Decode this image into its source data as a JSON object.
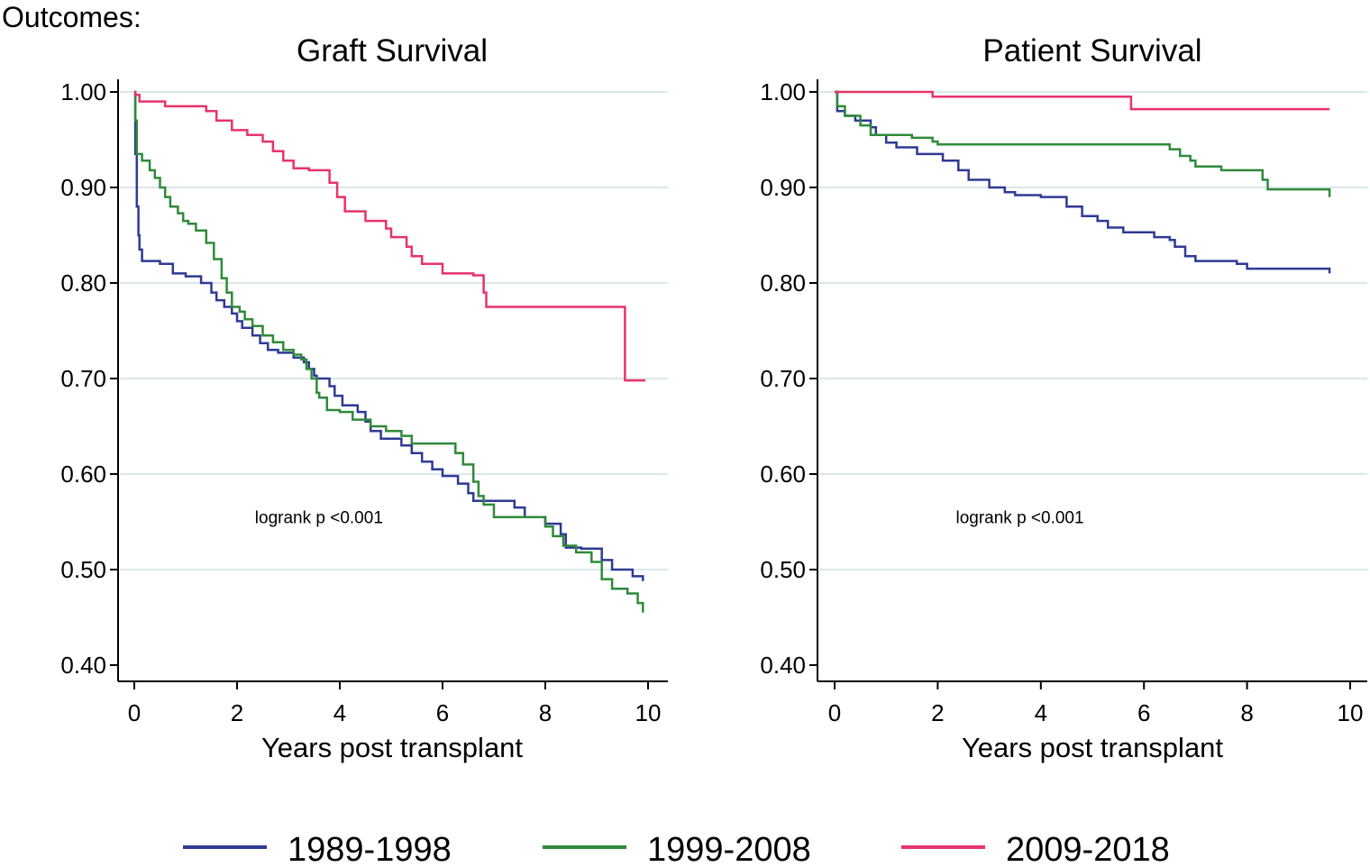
{
  "figure": {
    "heading": "Outcomes:"
  },
  "colors": {
    "series_1989_1998": "#2e3a94",
    "series_1999_2008": "#2f8a3a",
    "series_2009_2018": "#e8336b",
    "gridline": "#dbe8ea",
    "axis": "#000000"
  },
  "legend": [
    {
      "label": "1989-1998",
      "color": "#2e3a94"
    },
    {
      "label": "1999-2008",
      "color": "#2f8a3a"
    },
    {
      "label": "2009-2018",
      "color": "#e8336b"
    }
  ],
  "chart_data": [
    {
      "type": "line",
      "step": true,
      "title": "Graft Survival",
      "xlabel": "Years post transplant",
      "ylabel": "",
      "xlim": [
        0,
        10
      ],
      "ylim": [
        0.4,
        1.0
      ],
      "xticks": [
        0,
        2,
        4,
        6,
        8,
        10
      ],
      "yticks": [
        0.4,
        0.5,
        0.6,
        0.7,
        0.8,
        0.9,
        1.0
      ],
      "ytick_labels": [
        "0.40",
        "0.50",
        "0.60",
        "0.70",
        "0.80",
        "0.90",
        "1.00"
      ],
      "grid": true,
      "annotation": {
        "text": "logrank p <0.001",
        "x": 3.4,
        "y": 0.555
      },
      "series": [
        {
          "name": "1989-1998",
          "x": [
            0,
            0.02,
            0.05,
            0.08,
            0.1,
            0.15,
            0.3,
            0.5,
            0.75,
            1.0,
            1.3,
            1.5,
            1.6,
            1.75,
            1.9,
            2.0,
            2.1,
            2.3,
            2.45,
            2.6,
            2.8,
            3.1,
            3.3,
            3.4,
            3.5,
            3.55,
            3.6,
            3.8,
            3.9,
            4.05,
            4.35,
            4.5,
            4.6,
            4.8,
            5.0,
            5.2,
            5.4,
            5.6,
            5.8,
            6.0,
            6.3,
            6.5,
            6.6,
            6.75,
            6.85,
            7.0,
            7.4,
            7.6,
            8.0,
            8.3,
            8.4,
            8.7,
            9.0,
            9.1,
            9.3,
            9.7,
            9.9
          ],
          "y": [
            1.0,
            0.935,
            0.88,
            0.85,
            0.835,
            0.823,
            0.823,
            0.82,
            0.81,
            0.807,
            0.8,
            0.79,
            0.782,
            0.775,
            0.768,
            0.76,
            0.753,
            0.745,
            0.737,
            0.73,
            0.727,
            0.722,
            0.717,
            0.71,
            0.703,
            0.7,
            0.7,
            0.692,
            0.682,
            0.672,
            0.665,
            0.655,
            0.645,
            0.637,
            0.637,
            0.63,
            0.622,
            0.613,
            0.605,
            0.598,
            0.59,
            0.58,
            0.572,
            0.572,
            0.572,
            0.572,
            0.565,
            0.555,
            0.548,
            0.537,
            0.523,
            0.522,
            0.522,
            0.51,
            0.5,
            0.493,
            0.488
          ]
        },
        {
          "name": "1999-2008",
          "x": [
            0,
            0.02,
            0.05,
            0.15,
            0.3,
            0.4,
            0.5,
            0.6,
            0.7,
            0.85,
            0.95,
            1.05,
            1.2,
            1.4,
            1.55,
            1.7,
            1.8,
            1.9,
            2.05,
            2.15,
            2.3,
            2.5,
            2.7,
            2.9,
            3.1,
            3.25,
            3.35,
            3.45,
            3.55,
            3.6,
            3.75,
            4.0,
            4.25,
            4.6,
            4.9,
            5.2,
            5.4,
            5.6,
            6.25,
            6.4,
            6.6,
            6.7,
            6.8,
            7.0,
            7.5,
            7.8,
            8.0,
            8.15,
            8.35,
            8.6,
            8.9,
            9.1,
            9.3,
            9.6,
            9.8,
            9.9
          ],
          "y": [
            1.0,
            0.97,
            0.935,
            0.928,
            0.918,
            0.91,
            0.9,
            0.89,
            0.88,
            0.873,
            0.865,
            0.862,
            0.855,
            0.842,
            0.825,
            0.805,
            0.79,
            0.775,
            0.77,
            0.762,
            0.755,
            0.745,
            0.738,
            0.73,
            0.725,
            0.72,
            0.71,
            0.7,
            0.685,
            0.68,
            0.667,
            0.665,
            0.657,
            0.65,
            0.645,
            0.64,
            0.632,
            0.632,
            0.622,
            0.61,
            0.592,
            0.577,
            0.568,
            0.555,
            0.555,
            0.555,
            0.545,
            0.535,
            0.525,
            0.518,
            0.508,
            0.49,
            0.48,
            0.475,
            0.465,
            0.455
          ]
        },
        {
          "name": "2009-2018",
          "x": [
            0,
            0.02,
            0.1,
            0.4,
            0.6,
            1.4,
            1.6,
            1.9,
            2.2,
            2.5,
            2.7,
            2.9,
            3.1,
            3.4,
            3.8,
            3.95,
            4.1,
            4.5,
            4.9,
            5.0,
            5.3,
            5.4,
            5.6,
            6.0,
            6.6,
            6.8,
            6.85,
            9.5,
            9.55,
            9.95
          ],
          "y": [
            1.0,
            0.997,
            0.99,
            0.99,
            0.985,
            0.98,
            0.97,
            0.96,
            0.955,
            0.948,
            0.938,
            0.928,
            0.92,
            0.918,
            0.905,
            0.89,
            0.875,
            0.865,
            0.857,
            0.848,
            0.838,
            0.828,
            0.82,
            0.81,
            0.808,
            0.79,
            0.775,
            0.775,
            0.698,
            0.698
          ]
        }
      ]
    },
    {
      "type": "line",
      "step": true,
      "title": "Patient Survival",
      "xlabel": "Years post transplant",
      "ylabel": "",
      "xlim": [
        0,
        10
      ],
      "ylim": [
        0.4,
        1.0
      ],
      "xticks": [
        0,
        2,
        4,
        6,
        8,
        10
      ],
      "yticks": [
        0.4,
        0.5,
        0.6,
        0.7,
        0.8,
        0.9,
        1.0
      ],
      "ytick_labels": [
        "0.40",
        "0.50",
        "0.60",
        "0.70",
        "0.80",
        "0.90",
        "1.00"
      ],
      "grid": true,
      "annotation": {
        "text": "logrank p <0.001",
        "x": 3.4,
        "y": 0.555
      },
      "series": [
        {
          "name": "1989-1998",
          "x": [
            0,
            0.05,
            0.2,
            0.4,
            0.7,
            0.8,
            1.0,
            1.2,
            1.6,
            2.1,
            2.4,
            2.6,
            3.0,
            3.3,
            3.5,
            4.0,
            4.5,
            4.8,
            5.1,
            5.3,
            5.6,
            6.2,
            6.5,
            6.6,
            6.8,
            7.0,
            7.8,
            8.0,
            9.0,
            9.6
          ],
          "y": [
            1.0,
            0.98,
            0.975,
            0.97,
            0.963,
            0.955,
            0.947,
            0.942,
            0.935,
            0.928,
            0.918,
            0.908,
            0.9,
            0.895,
            0.892,
            0.89,
            0.88,
            0.87,
            0.865,
            0.858,
            0.853,
            0.848,
            0.845,
            0.838,
            0.828,
            0.823,
            0.82,
            0.815,
            0.815,
            0.81
          ]
        },
        {
          "name": "1999-2008",
          "x": [
            0,
            0.05,
            0.2,
            0.5,
            0.7,
            1.5,
            1.9,
            2.0,
            6.3,
            6.5,
            6.7,
            6.9,
            7.0,
            7.5,
            8.0,
            8.3,
            8.4,
            9.0,
            9.6
          ],
          "y": [
            1.0,
            0.985,
            0.975,
            0.965,
            0.955,
            0.952,
            0.948,
            0.945,
            0.945,
            0.94,
            0.933,
            0.928,
            0.922,
            0.918,
            0.918,
            0.908,
            0.898,
            0.898,
            0.89
          ]
        },
        {
          "name": "2009-2018",
          "x": [
            0,
            1.8,
            1.9,
            5.7,
            5.75,
            9.6
          ],
          "y": [
            1.0,
            1.0,
            0.995,
            0.995,
            0.982,
            0.982
          ]
        }
      ]
    }
  ]
}
